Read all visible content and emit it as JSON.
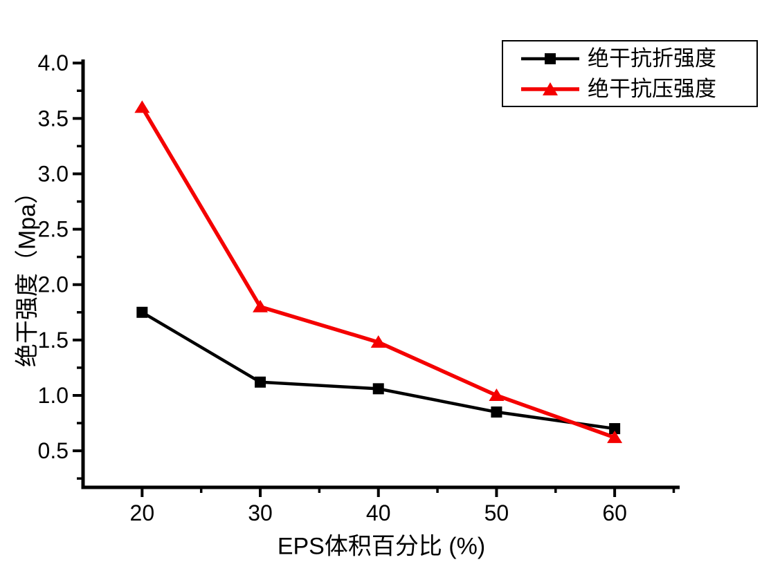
{
  "figure": {
    "background_color": "#ffffff",
    "axis_color": "#000000"
  },
  "chart_data": {
    "type": "line",
    "title": "",
    "x": [
      20,
      30,
      40,
      50,
      60
    ],
    "series": [
      {
        "name": "绝干抗折强度",
        "color": "#000000",
        "marker": "square",
        "values": [
          1.75,
          1.12,
          1.06,
          0.85,
          0.7
        ]
      },
      {
        "name": "绝干抗压强度",
        "color": "#f40000",
        "marker": "triangle",
        "values": [
          3.6,
          1.8,
          1.48,
          1.0,
          0.62
        ]
      }
    ],
    "xlabel": "EPS体积百分比 (%)",
    "ylabel": "绝干强度（Mpa）",
    "xlim": [
      15,
      65.5
    ],
    "ylim": [
      0.17,
      4.02
    ],
    "x_major_ticks": [
      20,
      30,
      40,
      50,
      60
    ],
    "x_tick_labels": [
      "20",
      "30",
      "40",
      "50",
      "60"
    ],
    "x_minor_ticks": [
      25,
      35,
      45,
      55,
      65
    ],
    "y_major_ticks": [
      0.5,
      1.0,
      1.5,
      2.0,
      2.5,
      3.0,
      3.5,
      4.0
    ],
    "y_tick_labels": [
      "0.5",
      "1.0",
      "1.5",
      "2.0",
      "2.5",
      "3.0",
      "3.5",
      "4.0"
    ],
    "y_minor_ticks": [
      0.25,
      0.75,
      1.25,
      1.75,
      2.25,
      2.75,
      3.25,
      3.75
    ],
    "grid": false,
    "legend_position": "top-right"
  }
}
